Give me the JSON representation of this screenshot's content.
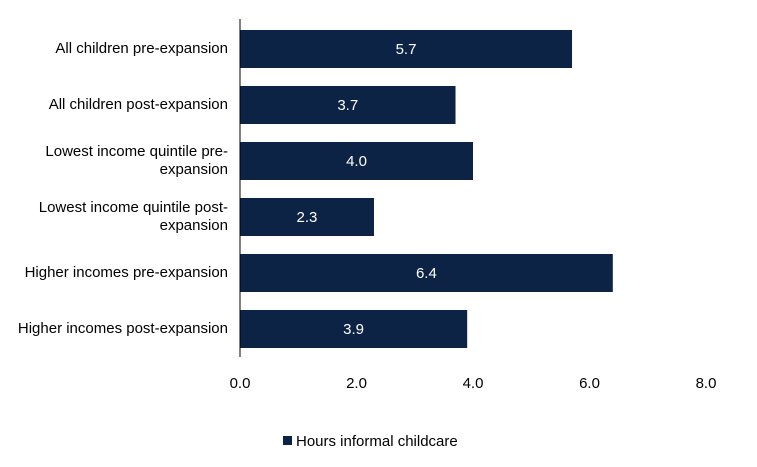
{
  "chart_data": {
    "type": "bar",
    "orientation": "horizontal",
    "categories": [
      "All children pre-expansion",
      "All children post-expansion",
      "Lowest income quintile pre-expansion",
      "Lowest income quintile post-expansion",
      "Higher incomes pre-expansion",
      "Higher incomes post-expansion"
    ],
    "series": [
      {
        "name": "Hours informal childcare",
        "color": "#0d2346",
        "values": [
          5.7,
          3.7,
          4.0,
          2.3,
          6.4,
          3.9
        ],
        "value_labels": [
          "5.7",
          "3.7",
          "4.0",
          "2.3",
          "6.4",
          "3.9"
        ]
      }
    ],
    "xlim": [
      0,
      8
    ],
    "xticks": [
      {
        "value": 0,
        "label": "0.0"
      },
      {
        "value": 2,
        "label": "2.0"
      },
      {
        "value": 4,
        "label": "4.0"
      },
      {
        "value": 6,
        "label": "6.0"
      },
      {
        "value": 8,
        "label": "8.0"
      }
    ],
    "legend": "bottom"
  }
}
